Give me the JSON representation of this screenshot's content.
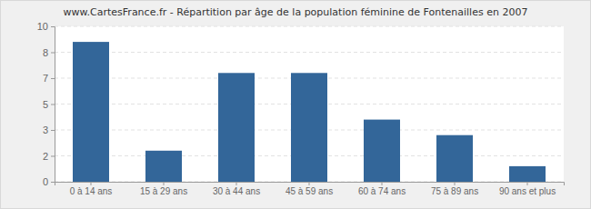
{
  "chart_data": {
    "type": "bar",
    "title": "www.CartesFrance.fr - Répartition par âge de la population féminine de Fontenailles en 2007",
    "categories": [
      "0 à 14 ans",
      "15 à 29 ans",
      "30 à 44 ans",
      "45 à 59 ans",
      "60 à 74 ans",
      "75 à 89 ans",
      "90 ans et plus"
    ],
    "values": [
      9,
      2,
      7,
      7,
      4,
      3,
      1
    ],
    "color": "#336699",
    "ylim": [
      0,
      10
    ],
    "yticks": [
      0,
      {
        "value": 1.667,
        "label": "2"
      },
      {
        "value": 3.333,
        "label": "3"
      },
      5,
      {
        "value": 6.667,
        "label": "7"
      },
      {
        "value": 8.333,
        "label": "8"
      },
      10
    ],
    "grid": true
  }
}
